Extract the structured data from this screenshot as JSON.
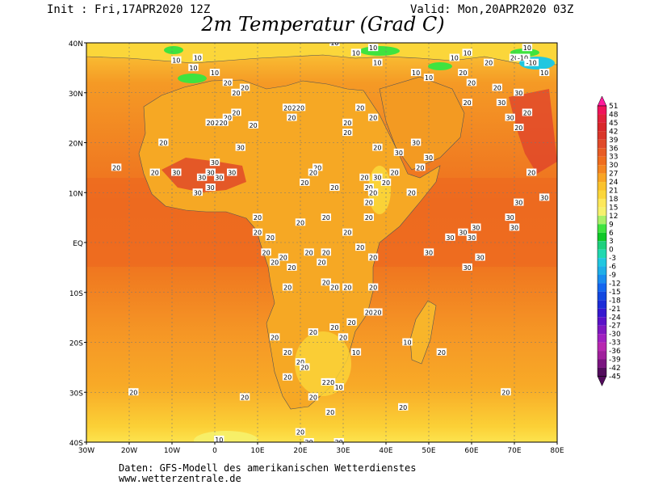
{
  "header": {
    "init": "Init : Fri,17APR2020 12Z",
    "valid": "Valid: Mon,20APR2020 03Z",
    "title": "2m Temperatur (Grad C)"
  },
  "footer": {
    "line1": "Daten: GFS-Modell des amerikanischen Wetterdienstes",
    "line2": "www.wetterzentrale.de"
  },
  "axes": {
    "lat_labels": [
      "40N",
      "30N",
      "20N",
      "10N",
      "EQ",
      "10S",
      "20S",
      "30S",
      "40S"
    ],
    "lon_labels": [
      "30W",
      "20W",
      "10W",
      "0",
      "10E",
      "20E",
      "30E",
      "40E",
      "50E",
      "60E",
      "70E",
      "80E"
    ]
  },
  "colorbar": {
    "levels": [
      "51",
      "48",
      "45",
      "42",
      "39",
      "36",
      "33",
      "30",
      "27",
      "24",
      "21",
      "18",
      "15",
      "12",
      "9",
      "6",
      "3",
      "0",
      "-3",
      "-6",
      "-9",
      "-12",
      "-15",
      "-18",
      "-21",
      "-24",
      "-27",
      "-30",
      "-33",
      "-36",
      "-39",
      "-42",
      "-45"
    ],
    "colors": [
      "#ff1b9c",
      "#f0135a",
      "#e0223a",
      "#d8272a",
      "#d9362a",
      "#e04a2a",
      "#e85c25",
      "#ef6d1e",
      "#f48520",
      "#f8a424",
      "#fac22c",
      "#fbd63a",
      "#fde85a",
      "#f6f16c",
      "#a8f068",
      "#3fe33f",
      "#10c828",
      "#1ed07d",
      "#20d8b0",
      "#20c7e0",
      "#1faee8",
      "#1a8cef",
      "#1466ef",
      "#1248e0",
      "#1c2cd8",
      "#3618d0",
      "#5a12c8",
      "#7f18c0",
      "#a020c0",
      "#b828b0",
      "#a0209c",
      "#7a1480",
      "#520b5c"
    ]
  },
  "map": {
    "labels": [
      {
        "t": "10",
        "lat": 36.5,
        "lon": -9
      },
      {
        "t": "10",
        "lat": 37,
        "lon": -4
      },
      {
        "t": "10",
        "lat": 34,
        "lon": 0
      },
      {
        "t": "10",
        "lat": 35,
        "lon": -5
      },
      {
        "t": "20",
        "lat": 32,
        "lon": 3
      },
      {
        "t": "20",
        "lat": 31,
        "lon": 7
      },
      {
        "t": "20",
        "lat": 30,
        "lon": 5
      },
      {
        "t": "20",
        "lat": 26,
        "lon": 5
      },
      {
        "t": "20",
        "lat": 25,
        "lon": 3
      },
      {
        "t": "20",
        "lat": 24,
        "lon": 1
      },
      {
        "t": "20",
        "lat": 24,
        "lon": -1
      },
      {
        "t": "20",
        "lat": 24,
        "lon": 2
      },
      {
        "t": "20",
        "lat": 23.5,
        "lon": 9
      },
      {
        "t": "20",
        "lat": 20,
        "lon": -12
      },
      {
        "t": "20",
        "lat": 15,
        "lon": -23
      },
      {
        "t": "20",
        "lat": 14,
        "lon": -14
      },
      {
        "t": "30",
        "lat": 14,
        "lon": -9
      },
      {
        "t": "30",
        "lat": 16,
        "lon": 0
      },
      {
        "t": "30",
        "lat": 14,
        "lon": -1
      },
      {
        "t": "30",
        "lat": 13,
        "lon": -3
      },
      {
        "t": "30",
        "lat": 14,
        "lon": 4
      },
      {
        "t": "30",
        "lat": 13,
        "lon": 1
      },
      {
        "t": "30",
        "lat": 11,
        "lon": -1
      },
      {
        "t": "30",
        "lat": 10,
        "lon": -4
      },
      {
        "t": "30",
        "lat": 19,
        "lon": 6
      },
      {
        "t": "20",
        "lat": 27,
        "lon": 17
      },
      {
        "t": "20",
        "lat": 27,
        "lon": 19
      },
      {
        "t": "20",
        "lat": 27,
        "lon": 20
      },
      {
        "t": "20",
        "lat": 25,
        "lon": 18
      },
      {
        "t": "20",
        "lat": 24,
        "lon": 31
      },
      {
        "t": "20",
        "lat": 22,
        "lon": 31
      },
      {
        "t": "20",
        "lat": 27,
        "lon": 34
      },
      {
        "t": "20",
        "lat": 25,
        "lon": 37
      },
      {
        "t": "20",
        "lat": 19,
        "lon": 38
      },
      {
        "t": "30",
        "lat": 18,
        "lon": 43
      },
      {
        "t": "30",
        "lat": 20,
        "lon": 47
      },
      {
        "t": "30",
        "lat": 17,
        "lon": 50
      },
      {
        "t": "20",
        "lat": 15,
        "lon": 24
      },
      {
        "t": "20",
        "lat": 14,
        "lon": 23
      },
      {
        "t": "20",
        "lat": 12,
        "lon": 21
      },
      {
        "t": "20",
        "lat": 11,
        "lon": 28
      },
      {
        "t": "20",
        "lat": 13,
        "lon": 35
      },
      {
        "t": "20",
        "lat": 11,
        "lon": 36
      },
      {
        "t": "30",
        "lat": 13,
        "lon": 38
      },
      {
        "t": "20",
        "lat": 12,
        "lon": 40
      },
      {
        "t": "20",
        "lat": 10,
        "lon": 37
      },
      {
        "t": "20",
        "lat": 8,
        "lon": 36
      },
      {
        "t": "20",
        "lat": 10,
        "lon": 46
      },
      {
        "t": "20",
        "lat": 5,
        "lon": 36
      },
      {
        "t": "20",
        "lat": 14,
        "lon": 42
      },
      {
        "t": "20",
        "lat": 15,
        "lon": 48
      },
      {
        "t": "10",
        "lat": 36,
        "lon": 38
      },
      {
        "t": "10",
        "lat": 38,
        "lon": 33
      },
      {
        "t": "10",
        "lat": 40,
        "lon": 28
      },
      {
        "t": "10",
        "lat": 39,
        "lon": 37
      },
      {
        "t": "10",
        "lat": 34,
        "lon": 47
      },
      {
        "t": "10",
        "lat": 33,
        "lon": 50
      },
      {
        "t": "10",
        "lat": 37,
        "lon": 56
      },
      {
        "t": "10",
        "lat": 38,
        "lon": 59
      },
      {
        "t": "20",
        "lat": 34,
        "lon": 58
      },
      {
        "t": "20",
        "lat": 32,
        "lon": 60
      },
      {
        "t": "20",
        "lat": 37,
        "lon": 70
      },
      {
        "t": "20",
        "lat": 31,
        "lon": 66
      },
      {
        "t": "20",
        "lat": 36,
        "lon": 64
      },
      {
        "t": "-10",
        "lat": 37,
        "lon": 72
      },
      {
        "t": "-10",
        "lat": 36,
        "lon": 74
      },
      {
        "t": "10",
        "lat": 34,
        "lon": 77
      },
      {
        "t": "10",
        "lat": 39,
        "lon": 73
      },
      {
        "t": "20",
        "lat": 28,
        "lon": 59
      },
      {
        "t": "30",
        "lat": 30,
        "lon": 71
      },
      {
        "t": "30",
        "lat": 28,
        "lon": 67
      },
      {
        "t": "30",
        "lat": 25,
        "lon": 69
      },
      {
        "t": "20",
        "lat": 26,
        "lon": 73
      },
      {
        "t": "20",
        "lat": 23,
        "lon": 71
      },
      {
        "t": "20",
        "lat": 14,
        "lon": 74
      },
      {
        "t": "30",
        "lat": 9,
        "lon": 77
      },
      {
        "t": "30",
        "lat": 8,
        "lon": 71
      },
      {
        "t": "30",
        "lat": 5,
        "lon": 69
      },
      {
        "t": "30",
        "lat": 3,
        "lon": 70
      },
      {
        "t": "30",
        "lat": 1,
        "lon": 55
      },
      {
        "t": "30",
        "lat": 2,
        "lon": 58
      },
      {
        "t": "30",
        "lat": 3,
        "lon": 61
      },
      {
        "t": "30",
        "lat": 1,
        "lon": 60
      },
      {
        "t": "30",
        "lat": -2,
        "lon": 50
      },
      {
        "t": "30",
        "lat": -5,
        "lon": 59
      },
      {
        "t": "30",
        "lat": -3,
        "lon": 62
      },
      {
        "t": "20",
        "lat": 5,
        "lon": 10
      },
      {
        "t": "20",
        "lat": 2,
        "lon": 10
      },
      {
        "t": "20",
        "lat": 1,
        "lon": 13
      },
      {
        "t": "20",
        "lat": -2,
        "lon": 12
      },
      {
        "t": "20",
        "lat": -4,
        "lon": 14
      },
      {
        "t": "20",
        "lat": -3,
        "lon": 16
      },
      {
        "t": "20",
        "lat": -5,
        "lon": 18
      },
      {
        "t": "20",
        "lat": -2,
        "lon": 22
      },
      {
        "t": "20",
        "lat": -4,
        "lon": 25
      },
      {
        "t": "20",
        "lat": -2,
        "lon": 26
      },
      {
        "t": "20",
        "lat": 4,
        "lon": 20
      },
      {
        "t": "20",
        "lat": 5,
        "lon": 26
      },
      {
        "t": "20",
        "lat": 2,
        "lon": 31
      },
      {
        "t": "20",
        "lat": -1,
        "lon": 34
      },
      {
        "t": "20",
        "lat": -3,
        "lon": 37
      },
      {
        "t": "20",
        "lat": -8,
        "lon": 26
      },
      {
        "t": "20",
        "lat": -9,
        "lon": 28
      },
      {
        "t": "20",
        "lat": -9,
        "lon": 31
      },
      {
        "t": "20",
        "lat": -9,
        "lon": 17
      },
      {
        "t": "20",
        "lat": -9,
        "lon": 37
      },
      {
        "t": "20",
        "lat": -14,
        "lon": 36
      },
      {
        "t": "20",
        "lat": -14,
        "lon": 38
      },
      {
        "t": "20",
        "lat": -16,
        "lon": 32
      },
      {
        "t": "20",
        "lat": -17,
        "lon": 28
      },
      {
        "t": "20",
        "lat": -19,
        "lon": 30
      },
      {
        "t": "20",
        "lat": -18,
        "lon": 23
      },
      {
        "t": "20",
        "lat": -19,
        "lon": 14
      },
      {
        "t": "20",
        "lat": -22,
        "lon": 17
      },
      {
        "t": "20",
        "lat": -24,
        "lon": 20
      },
      {
        "t": "20",
        "lat": -25,
        "lon": 21
      },
      {
        "t": "10",
        "lat": -20,
        "lon": 45
      },
      {
        "t": "10",
        "lat": -22,
        "lon": 33
      },
      {
        "t": "20",
        "lat": -22,
        "lon": 53
      },
      {
        "t": "20",
        "lat": -27,
        "lon": 17
      },
      {
        "t": "20",
        "lat": -28,
        "lon": 26
      },
      {
        "t": "20",
        "lat": -28,
        "lon": 27
      },
      {
        "t": "10",
        "lat": -29,
        "lon": 29
      },
      {
        "t": "20",
        "lat": -31,
        "lon": 23
      },
      {
        "t": "20",
        "lat": -30,
        "lon": -19
      },
      {
        "t": "20",
        "lat": -31,
        "lon": 7
      },
      {
        "t": "20",
        "lat": -33,
        "lon": 44
      },
      {
        "t": "20",
        "lat": -30,
        "lon": 68
      },
      {
        "t": "20",
        "lat": -34,
        "lon": 27
      },
      {
        "t": "20",
        "lat": -38,
        "lon": 20
      },
      {
        "t": "10",
        "lat": -39.5,
        "lon": 1
      },
      {
        "t": "20",
        "lat": -40,
        "lon": 22
      },
      {
        "t": "20",
        "lat": -40,
        "lon": 29
      }
    ]
  }
}
